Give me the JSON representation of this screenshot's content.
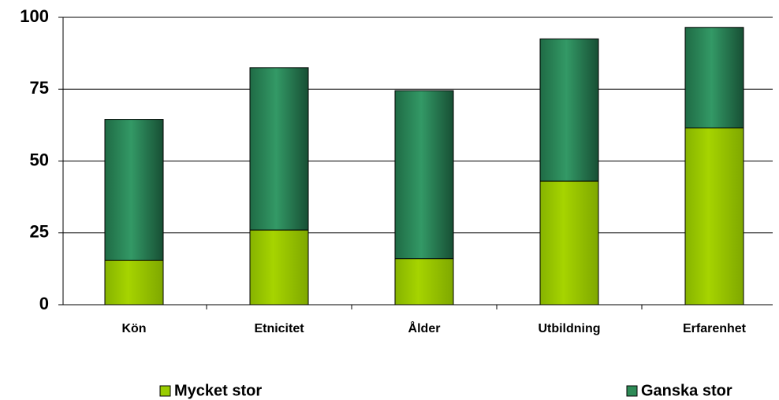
{
  "chart_data": {
    "type": "stacked_bar",
    "categories": [
      "Kön",
      "Etnicitet",
      "Ålder",
      "Utbildning",
      "Erfarenhet"
    ],
    "series": [
      {
        "name": "Mycket stor",
        "color": "#99cc00",
        "values": [
          15.5,
          26,
          16,
          43,
          61.5
        ]
      },
      {
        "name": "Ganska stor",
        "color": "#2e8b57",
        "values": [
          49,
          56.5,
          58.5,
          49.5,
          35
        ]
      }
    ],
    "ylim": [
      0,
      100
    ],
    "yticks": [
      0,
      25,
      50,
      75,
      100
    ],
    "grid": true
  }
}
